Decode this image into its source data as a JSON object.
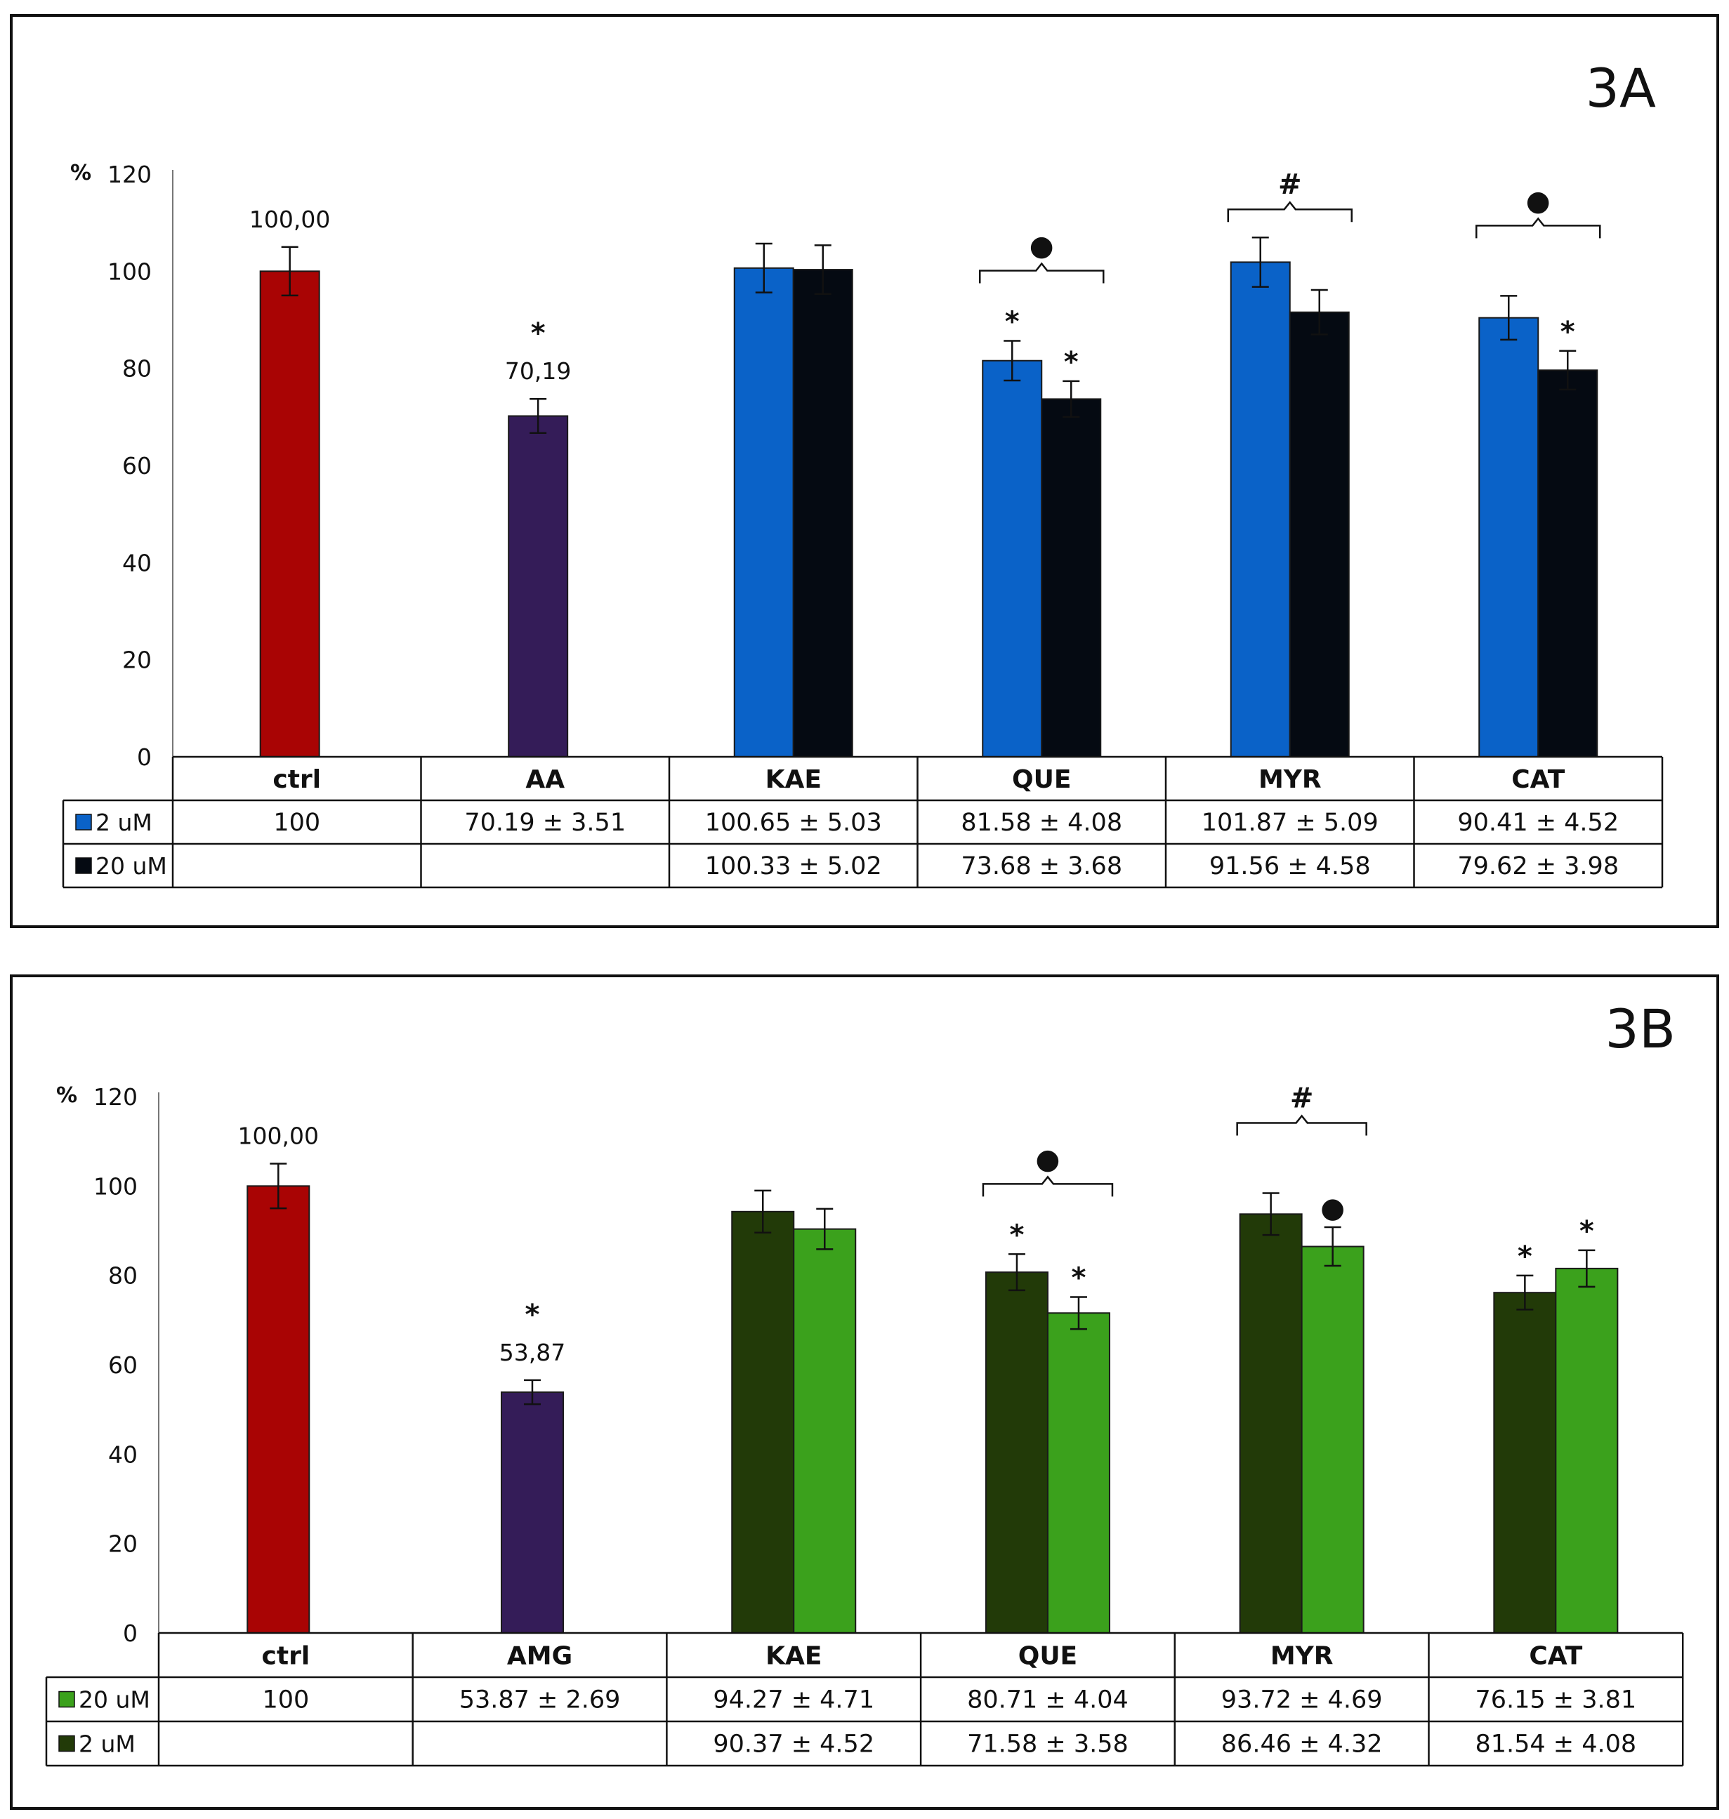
{
  "chart_data": [
    {
      "type": "bar",
      "panel_title": "3A",
      "y_unit_label": "%",
      "yticks": [
        0,
        20,
        40,
        60,
        80,
        100,
        120
      ],
      "ylim": [
        0,
        120
      ],
      "categories": [
        "ctrl",
        "AA",
        "KAE",
        "QUE",
        "MYR",
        "CAT"
      ],
      "series": [
        {
          "name": "2 uM",
          "color": "#0a62c8",
          "values": [
            100,
            70.19,
            100.65,
            81.58,
            101.87,
            90.41
          ],
          "errors": [
            5,
            3.51,
            5.03,
            4.08,
            5.09,
            4.52
          ],
          "table_text": [
            "100",
            "70.19 ± 3.51",
            "100.65 ± 5.03",
            "81.58 ± 4.08",
            "101.87 ± 5.09",
            "90.41 ± 4.52"
          ]
        },
        {
          "name": "20 uM",
          "color": "#050a12",
          "values": [
            null,
            null,
            100.33,
            73.68,
            91.56,
            79.62
          ],
          "errors": [
            null,
            null,
            5.02,
            3.68,
            4.58,
            3.98
          ],
          "table_text": [
            "",
            "",
            "100.33 ± 5.02",
            "73.68 ± 3.68",
            "91.56 ± 4.58",
            "79.62 ± 3.98"
          ]
        }
      ],
      "single_bar_colors": [
        "#a90404",
        "#341c58"
      ],
      "data_labels": [
        {
          "category": "ctrl",
          "text": "100,00"
        },
        {
          "category": "AA",
          "text": "70,19"
        }
      ],
      "bar_stars": [
        {
          "category": "AA",
          "series": 0,
          "text": "*"
        },
        {
          "category": "QUE",
          "series": 0,
          "text": "*"
        },
        {
          "category": "QUE",
          "series": 1,
          "text": "*"
        },
        {
          "category": "CAT",
          "series": 1,
          "text": "*"
        }
      ],
      "brackets": [
        {
          "category": "QUE",
          "symbol": "●"
        },
        {
          "category": "MYR",
          "symbol": "#"
        },
        {
          "category": "CAT",
          "symbol": "●"
        }
      ]
    },
    {
      "type": "bar",
      "panel_title": "3B",
      "y_unit_label": "%",
      "yticks": [
        0,
        20,
        40,
        60,
        80,
        100,
        120
      ],
      "ylim": [
        0,
        120
      ],
      "categories": [
        "ctrl",
        "AMG",
        "KAE",
        "QUE",
        "MYR",
        "CAT"
      ],
      "series": [
        {
          "name": "20 uM",
          "color": "#223a08",
          "values": [
            100,
            53.87,
            94.27,
            80.71,
            93.72,
            76.15
          ],
          "errors": [
            5,
            2.69,
            4.71,
            4.04,
            4.69,
            3.81
          ],
          "table_text": [
            "100",
            "53.87 ± 2.69",
            "94.27 ± 4.71",
            "80.71 ± 4.04",
            "93.72 ± 4.69",
            "76.15 ± 3.81"
          ]
        },
        {
          "name": "2 uM",
          "color": "#3ba11c",
          "values": [
            null,
            null,
            90.37,
            71.58,
            86.46,
            81.54
          ],
          "errors": [
            null,
            null,
            4.52,
            3.58,
            4.32,
            4.08
          ],
          "table_text": [
            "",
            "",
            "90.37 ± 4.52",
            "71.58 ± 3.58",
            "86.46 ± 4.32",
            "81.54 ± 4.08"
          ]
        }
      ],
      "legend_swatch_colors": [
        "#3ba11c",
        "#223a08"
      ],
      "single_bar_colors": [
        "#a90404",
        "#341c58"
      ],
      "data_labels": [
        {
          "category": "ctrl",
          "text": "100,00"
        },
        {
          "category": "AMG",
          "text": "53,87"
        }
      ],
      "bar_stars": [
        {
          "category": "AMG",
          "series": 0,
          "text": "*"
        },
        {
          "category": "QUE",
          "series": 0,
          "text": "*"
        },
        {
          "category": "QUE",
          "series": 1,
          "text": "*"
        },
        {
          "category": "MYR",
          "series": 1,
          "text": "●"
        },
        {
          "category": "CAT",
          "series": 0,
          "text": "*"
        },
        {
          "category": "CAT",
          "series": 1,
          "text": "*"
        }
      ],
      "brackets": [
        {
          "category": "QUE",
          "symbol": "●"
        },
        {
          "category": "MYR",
          "symbol": "#"
        }
      ]
    }
  ]
}
